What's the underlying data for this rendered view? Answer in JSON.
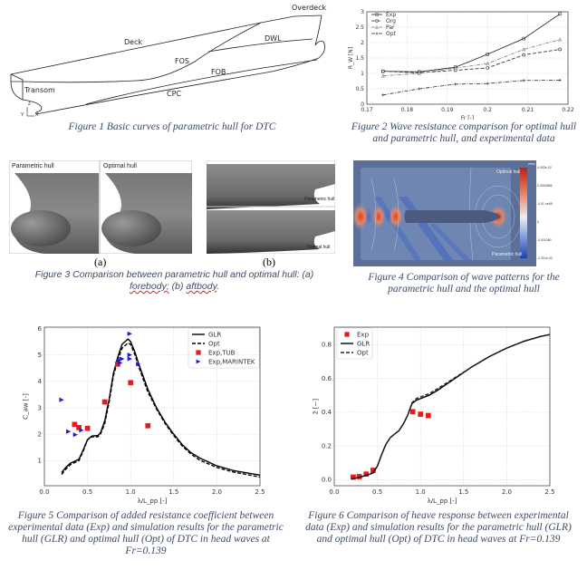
{
  "figure1": {
    "caption": "Figure 1 Basic curves of parametric hull for DTC",
    "labels": {
      "overdeck": "Overdeck",
      "deck": "Deck",
      "dwl": "DWL",
      "fos": "FOS",
      "fob": "FOB",
      "cpc": "CPC",
      "transom": "Transom",
      "axis_z": "Z",
      "axis_y": "Y",
      "axis_x": "X"
    }
  },
  "figure2": {
    "caption": "Figure 2 Wave resistance comparison for optimal hull and parametric hull, and experimental data"
  },
  "figure3": {
    "caption_pre": "Figure 3 Comparison between parametric hull and optimal hull: (a) ",
    "caption_word1": "forebody;",
    "caption_mid": " (b) ",
    "caption_word2": "aftbody",
    "caption_end": ".",
    "label_a": "(a)",
    "label_b": "(b)",
    "panel_a_left": "Parametric hull",
    "panel_a_right": "Optimal hull",
    "panel_b_top": "Parametric hull",
    "panel_b_bottom": "Optimal hull"
  },
  "figure4": {
    "caption": "Figure 4 Comparison of wave patterns for the parametric hull and the optimal hull",
    "top_label": "Optimal hull",
    "bottom_label": "Parametric hull",
    "colorbar_title": "zeta",
    "colorbar_ticks": [
      "4.402e-02",
      "0.0000666",
      "-0.01 ne65",
      "0",
      "-0.011060",
      "-2.201e-02"
    ],
    "colors": {
      "negative": "#2f56c8",
      "neutral": "#6f86b3",
      "positive": "#e04a2a"
    }
  },
  "figure5": {
    "caption": "Figure 5 Comparison of added resistance coefficient between experimental data (Exp) and simulation results for the parametric  hull (GLR) and optimal hull (Opt) of DTC in head waves at Fr=0.139"
  },
  "figure6": {
    "caption": "Figure 6 Comparison of heave response between experimental data (Exp) and simulation results for the parametric hull (GLR) and optimal hull (Opt) of DTC in head waves at Fr=0.139"
  },
  "chart_data": [
    {
      "id": "fig2",
      "type": "line",
      "title": "",
      "xlabel": "Fr [-]",
      "ylabel": "R_W [N]",
      "xlim": [
        0.17,
        0.22
      ],
      "ylim": [
        0,
        3
      ],
      "xticks": [
        0.17,
        0.18,
        0.19,
        0.2,
        0.21,
        0.22
      ],
      "xticklabels": [
        "0.17",
        "0.18",
        "0.19",
        "0.2",
        "0.21",
        "0.22"
      ],
      "yticks": [
        0,
        0.5,
        1,
        1.5,
        2,
        2.5,
        3
      ],
      "yticklabels": [
        "0",
        "0.5",
        "1",
        "1.5",
        "2",
        "2.5",
        "3"
      ],
      "grid": true,
      "legend": "top-left",
      "series": [
        {
          "name": "Exp",
          "style": "solid",
          "marker": "square",
          "color": "#222222",
          "x": [
            0.174,
            0.183,
            0.192,
            0.2,
            0.209,
            0.218
          ],
          "y": [
            1.07,
            1.05,
            1.2,
            1.62,
            2.13,
            2.93
          ]
        },
        {
          "name": "Org",
          "style": "dashed",
          "marker": "circle",
          "color": "#222222",
          "x": [
            0.174,
            0.183,
            0.192,
            0.2,
            0.209,
            0.218
          ],
          "y": [
            1.07,
            1.02,
            1.1,
            1.18,
            1.6,
            1.78
          ]
        },
        {
          "name": "Par",
          "style": "dashdot",
          "marker": "triangle",
          "color": "#777777",
          "x": [
            0.174,
            0.183,
            0.192,
            0.2,
            0.209,
            0.218
          ],
          "y": [
            0.92,
            1.0,
            1.17,
            1.32,
            1.78,
            2.1
          ]
        },
        {
          "name": "Opt",
          "style": "dashdot",
          "marker": "cross",
          "color": "#222222",
          "x": [
            0.174,
            0.183,
            0.192,
            0.2,
            0.209,
            0.218
          ],
          "y": [
            0.3,
            0.5,
            0.65,
            0.67,
            0.77,
            0.78
          ]
        }
      ]
    },
    {
      "id": "fig5",
      "type": "line",
      "title": "",
      "xlabel": "λ/L_pp [-]",
      "ylabel": "C_aw [-]",
      "xlim": [
        0,
        2.5
      ],
      "ylim": [
        0.05,
        6.05
      ],
      "xticks": [
        0,
        0.5,
        1,
        1.5,
        2,
        2.5
      ],
      "xticklabels": [
        "0.0",
        "0.5",
        "1.0",
        "1.5",
        "2.0",
        "2.5"
      ],
      "yticks": [
        1,
        2,
        3,
        4,
        5,
        6
      ],
      "yticklabels": [
        "1",
        "2",
        "3",
        "4",
        "5",
        "6"
      ],
      "grid": true,
      "legend": "top-right",
      "series": [
        {
          "name": "GLR",
          "style": "solid",
          "marker": "none",
          "color": "#000000",
          "x": [
            0.2,
            0.25,
            0.3,
            0.4,
            0.45,
            0.5,
            0.55,
            0.62,
            0.65,
            0.7,
            0.75,
            0.8,
            0.85,
            0.9,
            0.97,
            1.0,
            1.05,
            1.1,
            1.2,
            1.3,
            1.4,
            1.5,
            1.6,
            1.7,
            1.8,
            2.0,
            2.2,
            2.5
          ],
          "y": [
            0.55,
            0.75,
            0.9,
            1.05,
            1.4,
            1.8,
            1.93,
            1.95,
            2.05,
            2.5,
            3.3,
            4.3,
            4.9,
            5.4,
            5.6,
            5.5,
            5.1,
            4.6,
            3.7,
            3.0,
            2.45,
            2.0,
            1.6,
            1.3,
            1.1,
            0.8,
            0.62,
            0.45
          ]
        },
        {
          "name": "Opt",
          "style": "dashed",
          "marker": "none",
          "color": "#000000",
          "x": [
            0.2,
            0.25,
            0.3,
            0.4,
            0.45,
            0.5,
            0.55,
            0.62,
            0.65,
            0.7,
            0.75,
            0.8,
            0.85,
            0.9,
            0.97,
            1.0,
            1.05,
            1.1,
            1.2,
            1.3,
            1.4,
            1.5,
            1.6,
            1.7,
            1.8,
            2.0,
            2.2,
            2.5
          ],
          "y": [
            0.48,
            0.68,
            0.85,
            1.0,
            1.35,
            1.78,
            1.9,
            1.9,
            2.0,
            2.4,
            3.2,
            4.2,
            4.8,
            5.25,
            5.45,
            5.4,
            5.0,
            4.5,
            3.6,
            2.95,
            2.4,
            1.95,
            1.55,
            1.25,
            1.02,
            0.74,
            0.56,
            0.38
          ]
        },
        {
          "name": "Exp,TUB",
          "style": "none",
          "marker": "square",
          "color": "#e41a1c",
          "x": [
            0.35,
            0.4,
            0.5,
            0.7,
            0.85,
            1.0,
            1.2
          ],
          "y": [
            2.37,
            2.25,
            2.22,
            3.22,
            4.65,
            3.95,
            2.32
          ]
        },
        {
          "name": "Exp,MARINTEK",
          "style": "none",
          "marker": "triangle-right",
          "color": "#1a1ad8",
          "x": [
            0.2,
            0.28,
            0.36,
            0.43,
            0.87,
            0.88,
            0.9,
            0.99,
            0.99,
            0.99,
            1.09
          ],
          "y": [
            3.3,
            2.1,
            1.98,
            2.15,
            4.8,
            4.7,
            4.85,
            5.8,
            5.0,
            4.85,
            4.65
          ]
        }
      ]
    },
    {
      "id": "fig6",
      "type": "line",
      "title": "",
      "xlabel": "λ/L_pp [-]",
      "ylabel": "z̄ [−]",
      "xlim": [
        0,
        2.5
      ],
      "ylim": [
        -0.036,
        0.904
      ],
      "xticks": [
        0,
        0.5,
        1,
        1.5,
        2,
        2.5
      ],
      "xticklabels": [
        "0.0",
        "0.5",
        "1.0",
        "1.5",
        "2.0",
        "2.5"
      ],
      "yticks": [
        0,
        0.2,
        0.4,
        0.6,
        0.8
      ],
      "yticklabels": [
        "0.0",
        "0.2",
        "0.4",
        "0.6",
        "0.8"
      ],
      "grid": true,
      "legend": "top-left",
      "series": [
        {
          "name": "Exp",
          "style": "none",
          "marker": "square",
          "color": "#e41a1c",
          "x": [
            0.22,
            0.29,
            0.37,
            0.45,
            0.91,
            1.0,
            1.09
          ],
          "y": [
            0.015,
            0.018,
            0.033,
            0.055,
            0.403,
            0.388,
            0.38
          ]
        },
        {
          "name": "GLR",
          "style": "solid",
          "marker": "none",
          "color": "#000000",
          "x": [
            0.2,
            0.3,
            0.4,
            0.45,
            0.5,
            0.55,
            0.6,
            0.65,
            0.7,
            0.75,
            0.8,
            0.85,
            0.9,
            0.95,
            1.0,
            1.1,
            1.2,
            1.4,
            1.6,
            1.8,
            2.0,
            2.2,
            2.4,
            2.5
          ],
          "y": [
            0.005,
            0.015,
            0.03,
            0.04,
            0.08,
            0.15,
            0.21,
            0.25,
            0.27,
            0.29,
            0.33,
            0.38,
            0.45,
            0.47,
            0.48,
            0.5,
            0.53,
            0.6,
            0.67,
            0.73,
            0.78,
            0.82,
            0.85,
            0.86
          ]
        },
        {
          "name": "Opt",
          "style": "dashed",
          "marker": "none",
          "color": "#222222",
          "x": [
            0.2,
            0.3,
            0.4,
            0.45,
            0.5,
            0.55,
            0.6,
            0.65,
            0.7,
            0.75,
            0.8,
            0.85,
            0.9,
            0.95,
            1.0,
            1.1,
            1.2,
            1.4,
            1.6,
            1.8,
            2.0,
            2.2,
            2.4,
            2.5
          ],
          "y": [
            0.005,
            0.015,
            0.03,
            0.04,
            0.08,
            0.15,
            0.21,
            0.25,
            0.27,
            0.29,
            0.33,
            0.38,
            0.455,
            0.48,
            0.49,
            0.51,
            0.54,
            0.605,
            0.67,
            0.73,
            0.78,
            0.82,
            0.85,
            0.86
          ]
        }
      ]
    }
  ]
}
